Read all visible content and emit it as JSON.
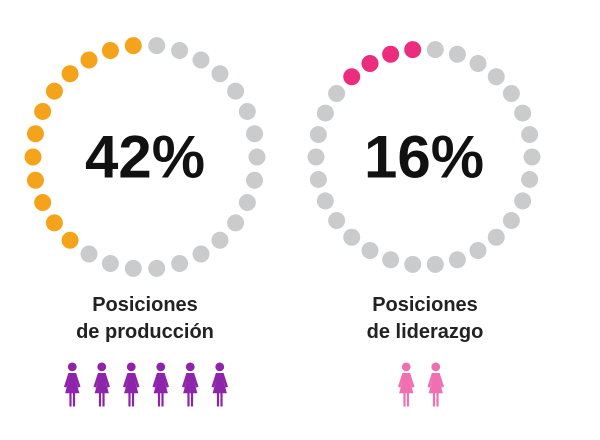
{
  "chart_data": [
    {
      "type": "donut",
      "value_label": "42%",
      "value": 42,
      "dots_total": 30,
      "dots_filled": 12,
      "label_lines": [
        "Posiciones",
        "de producción"
      ],
      "icons": {
        "count": 6,
        "icon": "woman-figure-icon",
        "color": "#8e24aa"
      },
      "colors": {
        "filled": "#f5a31a",
        "empty": "#c9cbcd"
      }
    },
    {
      "type": "donut",
      "value_label": "16%",
      "value": 16,
      "dots_total": 30,
      "dots_filled": 4,
      "label_lines": [
        "Posiciones",
        "de liderazgo"
      ],
      "icons": {
        "count": 2,
        "icon": "woman-figure-icon",
        "color": "#f06fb3"
      },
      "colors": {
        "filled": "#ec2d7e",
        "empty": "#c9cbcd"
      }
    }
  ]
}
